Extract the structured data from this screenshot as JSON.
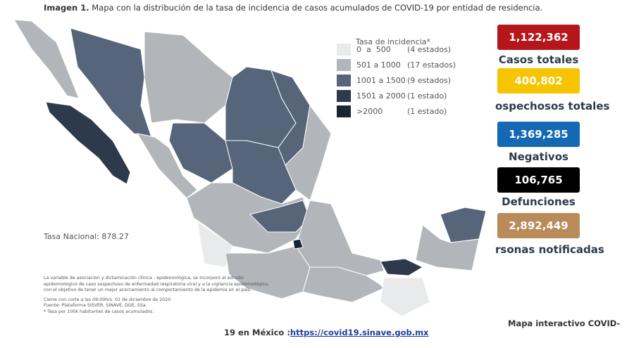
{
  "header": {
    "label": "Imagen 1.",
    "title": "Mapa con la distribución de la tasa de incidencia de casos acumulados de COVID-19 por entidad de residencia."
  },
  "legend": {
    "title": "Tasa de incidencia*",
    "rows": [
      {
        "range": "0  a  500",
        "count": "(4 estados)",
        "color": "#e9eaeb"
      },
      {
        "range": "501 a 1000",
        "count": "(17 estados)",
        "color": "#b2b6ba"
      },
      {
        "range": "1001 a 1500",
        "count": "(9 estados)",
        "color": "#56657a"
      },
      {
        "range": "1501 a 2000",
        "count": "(1 estado)",
        "color": "#2d3a4b"
      },
      {
        "range": ">2000",
        "count": "(1 estado)",
        "color": "#1a2533"
      }
    ]
  },
  "national_rate": "Tasa Nacional: 878.27",
  "stats": [
    {
      "value": "1,122,362",
      "label": "Casos totales",
      "color": "#b5161b"
    },
    {
      "value": "400,802",
      "label": "ospechosos totales",
      "color": "#f7c400"
    },
    {
      "value": "1,369,285",
      "label": "Negativos",
      "color": "#1568b3"
    },
    {
      "value": "106,765",
      "label": "Defunciones",
      "color": "#000000"
    },
    {
      "value": "2,892,449",
      "label": "rsonas notificadas",
      "color": "#b98b58"
    }
  ],
  "notes": [
    "La variable de asociación y dictaminación clínica - epidemiológica, se incorporó al estudio",
    "epidemiológico de caso sospechoso de enfermedad respiratoria viral y a la vigilancia epidemiológica,",
    "con el objetivo de tener un mejor acercamiento al comportamiento de la epidemia en el país.",
    "Cierre con corte a las 09:00hrs. 01 de diciembre de 2020",
    "Fuente: Plataforma SISVER, SINAVE, DGE, SSa.",
    "* Tasa por 100k habitantes de casos acumulados."
  ],
  "footer": {
    "line1": "Mapa interactivo COVID-",
    "line2": "19 en México :",
    "link": "https://covid19.sinave.gob.mx"
  }
}
